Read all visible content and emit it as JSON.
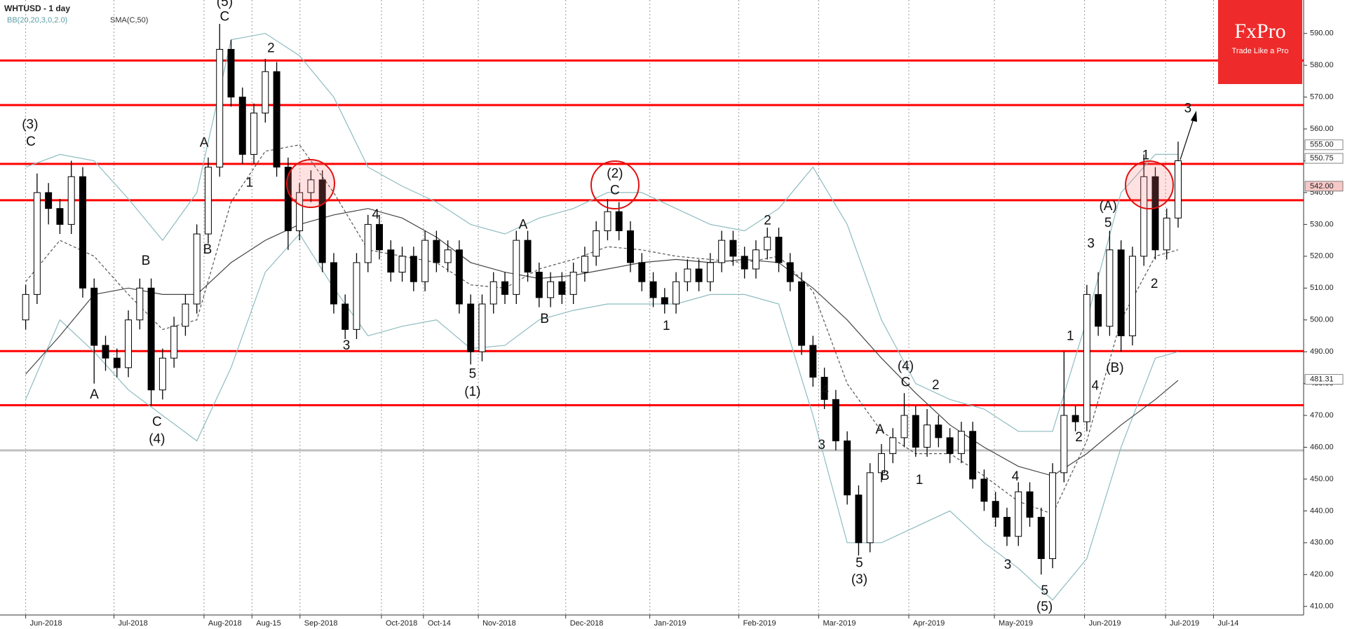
{
  "chart_data": {
    "type": "candlestick",
    "title": "WHTUSD - 1 day",
    "indicator_labels": [
      {
        "text": "BB(20,20,3,0,2.0)",
        "color": "#5b9ea6"
      },
      {
        "text": "SMA(C,50)",
        "color": "#333333"
      }
    ],
    "logo": {
      "name": "FxPro",
      "tagline": "Trade Like a Pro",
      "color": "#ee2a2a"
    },
    "xlim": [
      -2.25,
      112
    ],
    "xticks": [
      {
        "value": 0,
        "label": "Jun-2018"
      },
      {
        "value": 7.74,
        "label": "Jul-2018"
      },
      {
        "value": 15.63,
        "label": "Aug-2018"
      },
      {
        "value": 19.83,
        "label": "Aug-15"
      },
      {
        "value": 24.04,
        "label": "Sep-2018"
      },
      {
        "value": 31.18,
        "label": "Oct-2018"
      },
      {
        "value": 34.86,
        "label": "Oct-14"
      },
      {
        "value": 39.67,
        "label": "Nov-2018"
      },
      {
        "value": 47.33,
        "label": "Dec-2018"
      },
      {
        "value": 54.7,
        "label": "Jan-2019"
      },
      {
        "value": 62.5,
        "label": "Feb-2019"
      },
      {
        "value": 69.5,
        "label": "Mar-2019"
      },
      {
        "value": 77.4,
        "label": "Apr-2019"
      },
      {
        "value": 84.9,
        "label": "May-2019"
      },
      {
        "value": 92.8,
        "label": "Jun-2019"
      },
      {
        "value": 99.9,
        "label": "Jul-2019"
      },
      {
        "value": 104.1,
        "label": "Jul-14"
      }
    ],
    "xgrid": true,
    "ylim": [
      407.3,
      600.5
    ],
    "yticks": [
      {
        "value": 410,
        "label": "410.00"
      },
      {
        "value": 420,
        "label": "420.00"
      },
      {
        "value": 430,
        "label": "430.00"
      },
      {
        "value": 440,
        "label": "440.00"
      },
      {
        "value": 450,
        "label": "450.00"
      },
      {
        "value": 460,
        "label": "460.00"
      },
      {
        "value": 470,
        "label": "470.00"
      },
      {
        "value": 480,
        "label": "480.00"
      },
      {
        "value": 490,
        "label": "490.00"
      },
      {
        "value": 500,
        "label": "500.00"
      },
      {
        "value": 510,
        "label": "510.00"
      },
      {
        "value": 520,
        "label": "520.00"
      },
      {
        "value": 530,
        "label": "530.00"
      },
      {
        "value": 540,
        "label": "540.00"
      },
      {
        "value": 550,
        "label": "550.00"
      },
      {
        "value": 560,
        "label": "560.00"
      },
      {
        "value": 570,
        "label": "570.00"
      },
      {
        "value": 580,
        "label": "580.00"
      },
      {
        "value": 590,
        "label": "590.00"
      }
    ],
    "up_color": "#ffffff",
    "down_color": "#000000",
    "ohlc": [
      [
        500,
        511,
        497,
        508
      ],
      [
        508,
        546,
        505,
        540
      ],
      [
        540,
        543,
        530,
        535
      ],
      [
        535,
        538,
        527,
        530
      ],
      [
        530,
        550,
        527,
        545
      ],
      [
        545,
        548,
        507,
        510
      ],
      [
        510,
        513,
        480,
        492
      ],
      [
        492,
        495,
        484,
        488
      ],
      [
        488,
        491,
        482,
        485
      ],
      [
        485,
        503,
        482,
        500
      ],
      [
        500,
        513,
        497,
        510
      ],
      [
        510,
        513,
        473,
        478
      ],
      [
        478,
        491,
        475,
        488
      ],
      [
        488,
        501,
        485,
        498
      ],
      [
        498,
        508,
        495,
        505
      ],
      [
        505,
        530,
        502,
        527
      ],
      [
        527,
        551,
        524,
        548
      ],
      [
        548,
        593,
        545,
        585
      ],
      [
        585,
        588,
        567,
        570
      ],
      [
        570,
        573,
        549,
        552
      ],
      [
        552,
        568,
        549,
        565
      ],
      [
        565,
        582,
        562,
        578
      ],
      [
        578,
        581,
        545,
        548
      ],
      [
        548,
        551,
        522,
        528
      ],
      [
        528,
        543,
        525,
        540
      ],
      [
        540,
        547,
        537,
        544
      ],
      [
        544,
        547,
        515,
        518
      ],
      [
        518,
        521,
        502,
        505
      ],
      [
        505,
        508,
        494,
        497
      ],
      [
        497,
        521,
        494,
        518
      ],
      [
        518,
        533,
        515,
        530
      ],
      [
        530,
        533,
        519,
        522
      ],
      [
        522,
        525,
        512,
        515
      ],
      [
        515,
        523,
        512,
        520
      ],
      [
        520,
        523,
        509,
        512
      ],
      [
        512,
        528,
        509,
        525
      ],
      [
        525,
        528,
        515,
        518
      ],
      [
        518,
        525,
        515,
        522
      ],
      [
        522,
        525,
        502,
        505
      ],
      [
        505,
        508,
        486,
        490
      ],
      [
        490,
        508,
        487,
        505
      ],
      [
        505,
        515,
        502,
        512
      ],
      [
        512,
        515,
        505,
        508
      ],
      [
        508,
        528,
        505,
        525
      ],
      [
        525,
        528,
        512,
        515
      ],
      [
        515,
        518,
        504,
        507
      ],
      [
        507,
        515,
        504,
        512
      ],
      [
        512,
        515,
        505,
        508
      ],
      [
        508,
        518,
        505,
        515
      ],
      [
        515,
        523,
        512,
        520
      ],
      [
        520,
        531,
        517,
        528
      ],
      [
        528,
        538,
        525,
        534
      ],
      [
        534,
        537,
        525,
        528
      ],
      [
        528,
        531,
        515,
        518
      ],
      [
        518,
        521,
        509,
        512
      ],
      [
        512,
        515,
        504,
        507
      ],
      [
        507,
        510,
        502,
        505
      ],
      [
        505,
        515,
        502,
        512
      ],
      [
        512,
        519,
        509,
        516
      ],
      [
        516,
        519,
        509,
        512
      ],
      [
        512,
        521,
        509,
        518
      ],
      [
        518,
        528,
        515,
        525
      ],
      [
        525,
        528,
        517,
        520
      ],
      [
        520,
        523,
        513,
        516
      ],
      [
        516,
        525,
        513,
        522
      ],
      [
        522,
        529,
        519,
        526
      ],
      [
        526,
        529,
        515,
        518
      ],
      [
        518,
        521,
        509,
        512
      ],
      [
        512,
        515,
        489,
        492
      ],
      [
        492,
        495,
        479,
        482
      ],
      [
        482,
        485,
        472,
        475
      ],
      [
        475,
        478,
        459,
        462
      ],
      [
        462,
        465,
        442,
        445
      ],
      [
        445,
        448,
        426,
        430
      ],
      [
        430,
        455,
        427,
        452
      ],
      [
        452,
        461,
        449,
        458
      ],
      [
        458,
        466,
        455,
        463
      ],
      [
        463,
        477,
        460,
        470
      ],
      [
        470,
        473,
        457,
        460
      ],
      [
        460,
        472,
        457,
        467
      ],
      [
        467,
        470,
        460,
        463
      ],
      [
        463,
        466,
        455,
        458
      ],
      [
        458,
        468,
        455,
        465
      ],
      [
        465,
        468,
        447,
        450
      ],
      [
        450,
        453,
        440,
        443
      ],
      [
        443,
        446,
        435,
        438
      ],
      [
        438,
        441,
        429,
        432
      ],
      [
        432,
        449,
        429,
        446
      ],
      [
        446,
        449,
        435,
        438
      ],
      [
        438,
        441,
        420,
        425
      ],
      [
        425,
        455,
        422,
        452
      ],
      [
        452,
        490,
        449,
        470
      ],
      [
        470,
        473,
        465,
        468
      ],
      [
        468,
        511,
        465,
        508
      ],
      [
        508,
        515,
        495,
        498
      ],
      [
        498,
        528,
        495,
        522
      ],
      [
        522,
        525,
        490,
        495
      ],
      [
        495,
        523,
        492,
        520
      ],
      [
        520,
        552,
        517,
        545
      ],
      [
        545,
        548,
        519,
        522
      ],
      [
        522,
        535,
        519,
        532
      ],
      [
        532,
        556,
        529,
        550
      ]
    ],
    "indicators": {
      "x": [
        0,
        3,
        6,
        9,
        12,
        15,
        18,
        21,
        24,
        27,
        30,
        33,
        36,
        39,
        42,
        45,
        48,
        51,
        54,
        57,
        60,
        63,
        66,
        69,
        72,
        75,
        78,
        81,
        84,
        87,
        90,
        93,
        96,
        99,
        101
      ],
      "series": [
        {
          "color": "#8fbcc0",
          "dash": false,
          "values": [
            548,
            552,
            550,
            538,
            525,
            540,
            588,
            590,
            583,
            570,
            548,
            542,
            537,
            530,
            527,
            532,
            535,
            540,
            540,
            535,
            530,
            528,
            535,
            548,
            530,
            500,
            480,
            475,
            472,
            465,
            465,
            500,
            540,
            552,
            552
          ]
        },
        {
          "color": "#8fbcc0",
          "dash": false,
          "values": [
            475,
            500,
            490,
            478,
            470,
            462,
            485,
            515,
            527,
            510,
            495,
            498,
            500,
            491,
            492,
            500,
            503,
            505,
            505,
            505,
            508,
            508,
            505,
            470,
            430,
            430,
            435,
            440,
            430,
            422,
            412,
            425,
            460,
            488,
            490
          ]
        },
        {
          "color": "#555555",
          "dash": true,
          "values": [
            512,
            525,
            520,
            508,
            497,
            500,
            537,
            553,
            555,
            540,
            522,
            520,
            518,
            511,
            510,
            516,
            519,
            523,
            522,
            520,
            519,
            518,
            520,
            509,
            480,
            465,
            458,
            458,
            451,
            443,
            439,
            462,
            500,
            520,
            522
          ]
        },
        {
          "color": "#444444",
          "dash": false,
          "values": [
            483,
            495,
            508,
            510,
            508,
            508,
            518,
            525,
            530,
            533,
            535,
            532,
            526,
            518,
            515,
            513,
            514,
            516,
            518,
            519,
            518,
            519,
            518,
            510,
            500,
            488,
            477,
            467,
            460,
            454,
            451,
            458,
            467,
            475,
            481
          ]
        }
      ]
    },
    "levels": [
      {
        "value": 581.5,
        "color": "#ff0000"
      },
      {
        "value": 567.5,
        "color": "#ff0000"
      },
      {
        "value": 549,
        "color": "#ff0000"
      },
      {
        "value": 537.6,
        "color": "#ff0000"
      },
      {
        "value": 490.2,
        "color": "#ff0000"
      },
      {
        "value": 473.2,
        "color": "#ff0000"
      },
      {
        "value": 459,
        "color": "#c0c0c0"
      }
    ],
    "price_tags": [
      {
        "value": 555,
        "label": "555.00",
        "color": "#ffffff"
      },
      {
        "value": 550.75,
        "label": "550.75",
        "color": "#ffffff"
      },
      {
        "value": 542,
        "label": "542.00",
        "color": "#f6c8c8"
      },
      {
        "value": 481.31,
        "label": "481.31",
        "color": "#ffffff"
      }
    ],
    "wave_labels": [
      "(3)",
      "C",
      "A",
      "B",
      "C",
      "(4)",
      "(5)",
      "C",
      "A",
      "B",
      "2",
      "1",
      "4",
      "3",
      "5",
      "(1)",
      "A",
      "B",
      "(2)",
      "C",
      "1",
      "2",
      "4",
      "3",
      "5",
      "(3)",
      "A",
      "B",
      "(4)",
      "C",
      "1",
      "2",
      "4",
      "3",
      "5",
      "(5)",
      "1",
      "2",
      "3",
      "4",
      "5",
      "(A)",
      "(B)",
      "1",
      "2",
      "3"
    ]
  }
}
